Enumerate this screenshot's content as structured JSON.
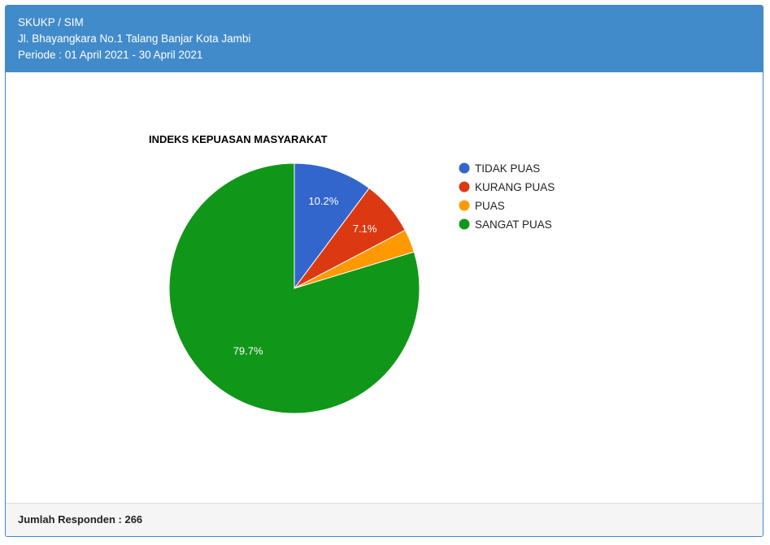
{
  "header": {
    "line1": "SKUKP / SIM",
    "line2": "Jl. Bhayangkara No.1 Talang Banjar Kota Jambi",
    "line3": "Periode : 01 April 2021 - 30 April 2021"
  },
  "footer": {
    "text": "Jumlah Responden : 266"
  },
  "chart_data": {
    "type": "pie",
    "title": "INDEKS KEPUASAN MASYARAKAT",
    "legend_position": "right",
    "categories": [
      "TIDAK PUAS",
      "KURANG PUAS",
      "PUAS",
      "SANGAT PUAS"
    ],
    "values": [
      10.2,
      7.1,
      3.0,
      79.7
    ],
    "value_labels": [
      "10.2%",
      "7.1%",
      "",
      "79.7%"
    ],
    "colors": [
      "#3366cc",
      "#dc3912",
      "#ff9900",
      "#109618"
    ]
  }
}
